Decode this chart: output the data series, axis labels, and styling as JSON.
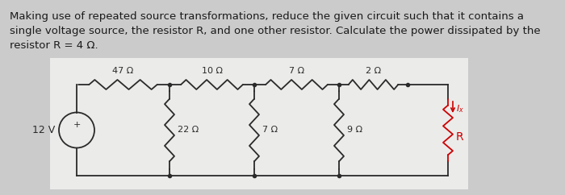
{
  "bg_color": "#cbcbcb",
  "circuit_bg": "#ebebea",
  "text_lines": [
    "Making use of repeated source transformations, reduce the given circuit such that it contains a",
    "single voltage source, the resistor R, and one other resistor. Calculate the power dissipated by the",
    "resistor R = 4 Ω."
  ],
  "text_color": "#1a1a1a",
  "text_fontsize": 9.5,
  "wire_color": "#2a2a2a",
  "R_color": "#cc0000",
  "Ix_color": "#cc0000",
  "top_labels": [
    "47 Ω",
    "10 Ω",
    "7 Ω",
    "2 Ω"
  ],
  "shunt_labels": [
    "22 Ω",
    "7 Ω",
    "9 Ω"
  ],
  "vs_label": "12 V"
}
